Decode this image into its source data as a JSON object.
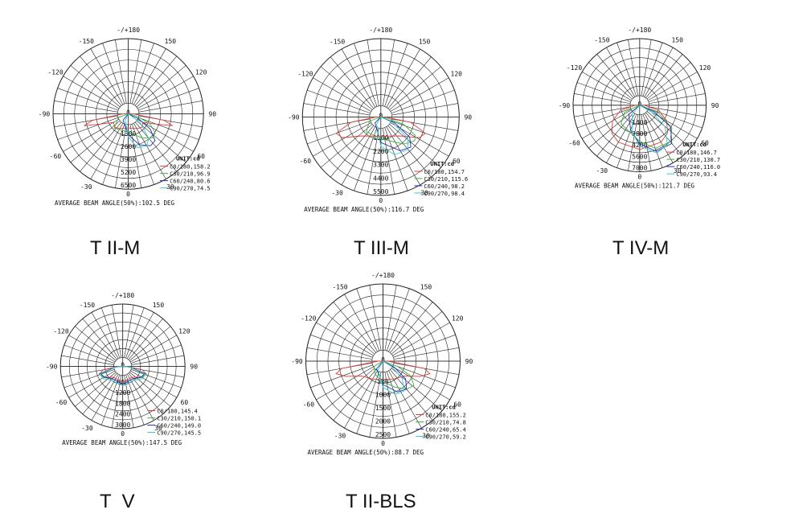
{
  "colors": {
    "c0": "#e03a3a",
    "c30": "#3bb33b",
    "c60": "#2a2ab5",
    "c90": "#33cccc",
    "grid": "#222222"
  },
  "chart_data": [
    {
      "type": "polar",
      "title": "T II-M",
      "unit": "UNIT:cd",
      "footer": "AVERAGE BEAM ANGLE(50%):102.5 DEG",
      "angle_ticks": [
        "-/+180",
        "-150",
        "150",
        "-120",
        "120",
        "-90",
        "90",
        "-60",
        "60",
        "-30",
        "30",
        "0"
      ],
      "radial_ticks": [
        "1300",
        "2600",
        "3900",
        "5200",
        "6500"
      ],
      "rmax": 6500,
      "series": [
        {
          "name": "C0/180,158.2",
          "values": [
            [
              -90,
              300
            ],
            [
              -80,
              3400
            ],
            [
              -75,
              4400
            ],
            [
              -70,
              2800
            ],
            [
              -60,
              1500
            ],
            [
              -45,
              1700
            ],
            [
              -30,
              1500
            ],
            [
              0,
              1200
            ],
            [
              30,
              1500
            ],
            [
              45,
              1700
            ],
            [
              60,
              1500
            ],
            [
              70,
              2800
            ],
            [
              75,
              4400
            ],
            [
              80,
              3400
            ],
            [
              90,
              300
            ]
          ]
        },
        {
          "name": "C30/210,96.9",
          "values": [
            [
              -70,
              800
            ],
            [
              -45,
              1800
            ],
            [
              0,
              1600
            ],
            [
              30,
              2600
            ],
            [
              45,
              3200
            ],
            [
              55,
              3100
            ],
            [
              65,
              2200
            ],
            [
              75,
              700
            ]
          ]
        },
        {
          "name": "C60/240,80.6",
          "values": [
            [
              -40,
              600
            ],
            [
              0,
              1900
            ],
            [
              20,
              3100
            ],
            [
              35,
              3700
            ],
            [
              45,
              3600
            ],
            [
              55,
              2500
            ],
            [
              65,
              900
            ]
          ]
        },
        {
          "name": "C90/270,74.5",
          "values": [
            [
              -25,
              500
            ],
            [
              0,
              2100
            ],
            [
              15,
              3300
            ],
            [
              30,
              3500
            ],
            [
              40,
              3000
            ],
            [
              55,
              1200
            ]
          ]
        }
      ]
    },
    {
      "type": "polar",
      "title": "T III-M",
      "unit": "UNIT:cd",
      "footer": "AVERAGE BEAM ANGLE(50%):116.7 DEG",
      "angle_ticks": [
        "-/+180",
        "-150",
        "150",
        "-120",
        "120",
        "-90",
        "90",
        "-60",
        "60",
        "-30",
        "30",
        "0"
      ],
      "radial_ticks": [
        "1100",
        "2200",
        "3300",
        "4400",
        "5500"
      ],
      "rmax": 5500,
      "series": [
        {
          "name": "C0/180,154.7",
          "values": [
            [
              -90,
              200
            ],
            [
              -80,
              2300
            ],
            [
              -70,
              3700
            ],
            [
              -62,
              3400
            ],
            [
              -45,
              2000
            ],
            [
              0,
              1400
            ],
            [
              45,
              2000
            ],
            [
              62,
              3400
            ],
            [
              70,
              3700
            ],
            [
              80,
              2300
            ],
            [
              90,
              200
            ]
          ]
        },
        {
          "name": "C30/210,115.6",
          "values": [
            [
              -70,
              800
            ],
            [
              -45,
              1500
            ],
            [
              0,
              1600
            ],
            [
              40,
              2700
            ],
            [
              55,
              3200
            ],
            [
              62,
              3000
            ],
            [
              72,
              1800
            ],
            [
              80,
              400
            ]
          ]
        },
        {
          "name": "C60/240,98.2",
          "values": [
            [
              -45,
              500
            ],
            [
              0,
              1900
            ],
            [
              30,
              3000
            ],
            [
              45,
              3300
            ],
            [
              55,
              2700
            ],
            [
              68,
              1000
            ]
          ]
        },
        {
          "name": "C90/270,98.4",
          "values": [
            [
              -30,
              500
            ],
            [
              0,
              2200
            ],
            [
              20,
              3100
            ],
            [
              40,
              3300
            ],
            [
              52,
              2600
            ],
            [
              65,
              900
            ]
          ]
        }
      ]
    },
    {
      "type": "polar",
      "title": "T IV-M",
      "unit": "UNIT:cd",
      "footer": "AVERAGE BEAM ANGLE(50%):121.7 DEG",
      "angle_ticks": [
        "-/+180",
        "-150",
        "150",
        "-120",
        "120",
        "-90",
        "90",
        "-60",
        "60",
        "-30",
        "30",
        "0"
      ],
      "radial_ticks": [
        "1400",
        "2800",
        "4200",
        "5600",
        "7000"
      ],
      "rmax": 7000,
      "series": [
        {
          "name": "C0/180,146.7",
          "values": [
            [
              -90,
              300
            ],
            [
              -75,
              2200
            ],
            [
              -60,
              3600
            ],
            [
              -45,
              4600
            ],
            [
              -30,
              5000
            ],
            [
              0,
              5200
            ],
            [
              30,
              5000
            ],
            [
              45,
              4600
            ],
            [
              60,
              3600
            ],
            [
              75,
              2200
            ],
            [
              90,
              300
            ]
          ]
        },
        {
          "name": "C30/210,130.7",
          "values": [
            [
              -65,
              1800
            ],
            [
              -45,
              3000
            ],
            [
              0,
              4200
            ],
            [
              20,
              5400
            ],
            [
              40,
              5600
            ],
            [
              55,
              4600
            ],
            [
              68,
              2200
            ]
          ]
        },
        {
          "name": "C60/240,116.0",
          "values": [
            [
              -50,
              1500
            ],
            [
              -20,
              3000
            ],
            [
              0,
              4500
            ],
            [
              20,
              5800
            ],
            [
              40,
              5900
            ],
            [
              55,
              4400
            ],
            [
              65,
              1800
            ]
          ]
        },
        {
          "name": "C90/270,93.4",
          "values": [
            [
              -40,
              1200
            ],
            [
              -15,
              3200
            ],
            [
              0,
              4800
            ],
            [
              20,
              6000
            ],
            [
              35,
              5700
            ],
            [
              50,
              3800
            ],
            [
              60,
              1500
            ]
          ]
        }
      ]
    },
    {
      "type": "polar",
      "title": "T  V",
      "unit": "",
      "footer": "AVERAGE BEAM ANGLE(50%):147.5 DEG",
      "angle_ticks": [
        "-/+180",
        "-150",
        "150",
        "-120",
        "120",
        "-90",
        "90",
        "-60",
        "60",
        "-30",
        "30",
        "0"
      ],
      "radial_ticks": [
        "600",
        "1200",
        "1800",
        "2400",
        "3000"
      ],
      "rmax": 3000,
      "series": [
        {
          "name": "C0/180,145.4",
          "values": [
            [
              -90,
              100
            ],
            [
              -80,
              1000
            ],
            [
              -72,
              1300
            ],
            [
              -60,
              1100
            ],
            [
              -40,
              700
            ],
            [
              0,
              800
            ],
            [
              40,
              700
            ],
            [
              60,
              1100
            ],
            [
              72,
              1300
            ],
            [
              80,
              1000
            ],
            [
              90,
              100
            ]
          ]
        },
        {
          "name": "C30/210,150.1",
          "values": [
            [
              -85,
              300
            ],
            [
              -72,
              1250
            ],
            [
              -60,
              1150
            ],
            [
              -40,
              800
            ],
            [
              0,
              900
            ],
            [
              40,
              800
            ],
            [
              60,
              1150
            ],
            [
              72,
              1250
            ],
            [
              85,
              300
            ]
          ]
        },
        {
          "name": "C60/240,149.0",
          "values": [
            [
              -85,
              300
            ],
            [
              -72,
              1200
            ],
            [
              -60,
              1100
            ],
            [
              -40,
              800
            ],
            [
              0,
              900
            ],
            [
              40,
              800
            ],
            [
              60,
              1100
            ],
            [
              72,
              1200
            ],
            [
              85,
              300
            ]
          ]
        },
        {
          "name": "C90/270,145.5",
          "values": [
            [
              -85,
              300
            ],
            [
              -70,
              1250
            ],
            [
              -58,
              1200
            ],
            [
              -40,
              900
            ],
            [
              0,
              1000
            ],
            [
              40,
              900
            ],
            [
              58,
              1200
            ],
            [
              70,
              1250
            ],
            [
              85,
              300
            ]
          ]
        }
      ]
    },
    {
      "type": "polar",
      "title": "T II-BLS",
      "unit": "UNIT:cd",
      "footer": "AVERAGE BEAM ANGLE(50%):88.7 DEG",
      "angle_ticks": [
        "-/+180",
        "-150",
        "150",
        "-120",
        "120",
        "-90",
        "90",
        "-60",
        "60",
        "-30",
        "30",
        "0"
      ],
      "radial_ticks": [
        "500",
        "1000",
        "1500",
        "2000",
        "2500"
      ],
      "rmax": 2500,
      "series": [
        {
          "name": "C0/180,155.2",
          "values": [
            [
              -90,
              100
            ],
            [
              -80,
              1500
            ],
            [
              -75,
              1750
            ],
            [
              -68,
              1450
            ],
            [
              -55,
              900
            ],
            [
              -30,
              700
            ],
            [
              0,
              600
            ],
            [
              30,
              700
            ],
            [
              55,
              900
            ],
            [
              68,
              1450
            ],
            [
              75,
              1750
            ],
            [
              80,
              1500
            ],
            [
              90,
              100
            ]
          ]
        },
        {
          "name": "C30/210,74.8",
          "values": [
            [
              -60,
              300
            ],
            [
              -30,
              500
            ],
            [
              0,
              700
            ],
            [
              25,
              1000
            ],
            [
              40,
              1300
            ],
            [
              52,
              1400
            ],
            [
              62,
              1100
            ],
            [
              70,
              500
            ]
          ]
        },
        {
          "name": "C60/240,65.4",
          "values": [
            [
              -40,
              300
            ],
            [
              0,
              800
            ],
            [
              25,
              1200
            ],
            [
              40,
              1300
            ],
            [
              52,
              1000
            ],
            [
              62,
              400
            ]
          ]
        },
        {
          "name": "C90/270,59.2",
          "values": [
            [
              -30,
              300
            ],
            [
              0,
              900
            ],
            [
              20,
              1250
            ],
            [
              35,
              1300
            ],
            [
              48,
              900
            ],
            [
              58,
              300
            ]
          ]
        }
      ]
    }
  ]
}
